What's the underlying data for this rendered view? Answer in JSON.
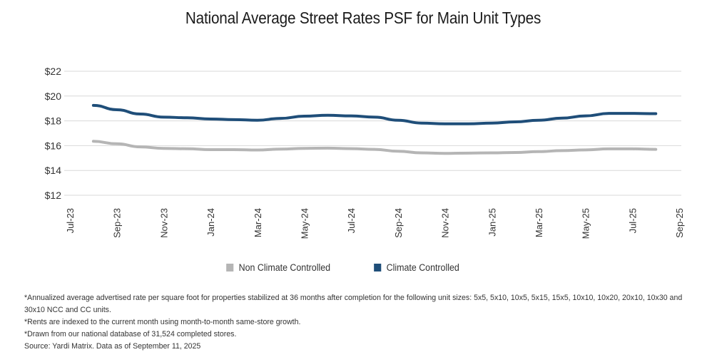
{
  "chart_data": {
    "type": "line",
    "title": "National Average Street Rates PSF for Main Unit Types",
    "xlabel": "",
    "ylabel": "",
    "ylim": [
      12,
      22
    ],
    "yticks": [
      12,
      14,
      16,
      18,
      20,
      22
    ],
    "ytick_labels": [
      "$12",
      "$14",
      "$16",
      "$18",
      "$20",
      "$22"
    ],
    "xtick_labels": [
      "Jul-23",
      "Sep-23",
      "Nov-23",
      "Jan-24",
      "Mar-24",
      "May-24",
      "Jul-24",
      "Sep-24",
      "Nov-24",
      "Jan-25",
      "Mar-25",
      "May-25",
      "Jul-25",
      "Sep-25"
    ],
    "x": [
      "Aug-23",
      "Sep-23",
      "Oct-23",
      "Nov-23",
      "Dec-23",
      "Jan-24",
      "Feb-24",
      "Mar-24",
      "Apr-24",
      "May-24",
      "Jun-24",
      "Jul-24",
      "Aug-24",
      "Sep-24",
      "Oct-24",
      "Nov-24",
      "Dec-24",
      "Jan-25",
      "Feb-25",
      "Mar-25",
      "Apr-25",
      "May-25",
      "Jun-25",
      "Jul-25",
      "Aug-25"
    ],
    "x_index_start": 1,
    "series": [
      {
        "name": "Non Climate Controlled",
        "color": "#b5b5b5",
        "values": [
          16.35,
          16.15,
          15.9,
          15.78,
          15.75,
          15.68,
          15.68,
          15.65,
          15.72,
          15.78,
          15.8,
          15.76,
          15.7,
          15.55,
          15.42,
          15.38,
          15.4,
          15.42,
          15.45,
          15.52,
          15.6,
          15.66,
          15.74,
          15.74,
          15.7
        ]
      },
      {
        "name": "Climate Controlled",
        "color": "#1f4e79",
        "values": [
          19.25,
          18.9,
          18.55,
          18.3,
          18.25,
          18.15,
          18.1,
          18.05,
          18.2,
          18.38,
          18.45,
          18.4,
          18.3,
          18.05,
          17.82,
          17.76,
          17.76,
          17.82,
          17.92,
          18.05,
          18.22,
          18.4,
          18.6,
          18.6,
          18.58
        ]
      }
    ],
    "grid": true,
    "legend": "bottom"
  },
  "notes": [
    "*Annualized average advertised rate per square foot for properties stabilized at 36 months after completion for the following unit sizes: 5x5, 5x10, 10x5, 5x15, 15x5, 10x10, 10x20, 20x10, 10x30 and 30x10 NCC and CC units.",
    "*Rents are indexed to the current month using month-to-month same-store growth.",
    "*Drawn from our national database of 31,524 completed stores.",
    "Source: Yardi Matrix. Data as of September 11, 2025"
  ],
  "colors": {
    "grid": "#d9d9d9",
    "axis_text": "#333333",
    "ncc": "#b5b5b5",
    "cc": "#1f4e79"
  }
}
